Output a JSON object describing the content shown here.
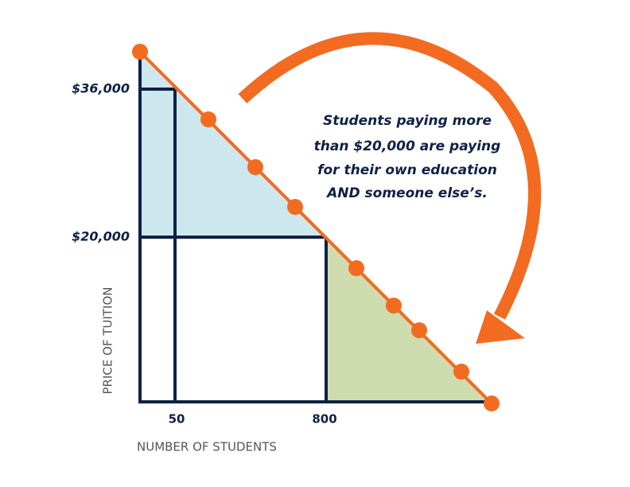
{
  "y_axis": {
    "title": "PRICE OF TUITION",
    "labels": [
      "$36,000",
      "$20,000"
    ]
  },
  "x_axis": {
    "title": "NUMBER OF STUDENTS",
    "labels": [
      "50",
      "800"
    ]
  },
  "annotation": {
    "lines": [
      "Students paying more",
      "than $20,000 are paying",
      "for their own education",
      "AND someone else’s."
    ]
  }
}
